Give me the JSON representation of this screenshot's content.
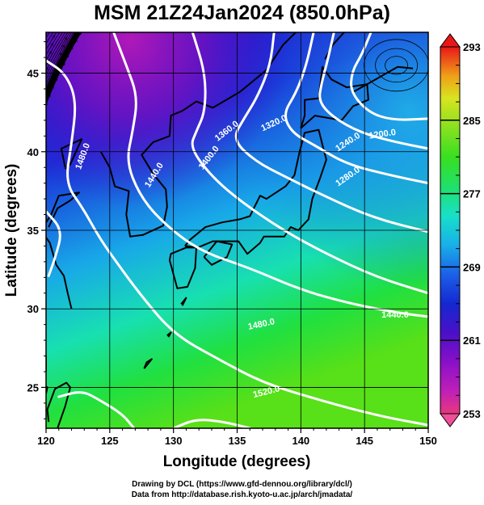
{
  "title": "MSM 21Z24Jan2024 (850.0hPa)",
  "footer": {
    "line1": "Drawing by DCL (https://www.gfd-dennou.org/library/dcl/)",
    "line2": "Data from http://database.rish.kyoto-u.ac.jp/arch/jmadata/"
  },
  "map": {
    "xlabel": "Longitude (degrees)",
    "ylabel": "Latitude (degrees)",
    "xlim": [
      120,
      150
    ],
    "ylim": [
      22.4,
      47.6
    ],
    "xticks": [
      "120",
      "125",
      "130",
      "135",
      "140",
      "145",
      "150"
    ],
    "yticks": [
      "25",
      "30",
      "35",
      "40",
      "45"
    ],
    "contour_labels": [
      {
        "text": "1480.0",
        "lon": 122.9,
        "lat": 39.7,
        "angle": -70
      },
      {
        "text": "1440.0",
        "lon": 128.5,
        "lat": 38.5,
        "angle": -58
      },
      {
        "text": "1400.0",
        "lon": 132.8,
        "lat": 39.6,
        "angle": -52
      },
      {
        "text": "1360.0",
        "lon": 134.2,
        "lat": 41.3,
        "angle": -38
      },
      {
        "text": "1320.0",
        "lon": 137.9,
        "lat": 41.8,
        "angle": -25
      },
      {
        "text": "1240.0",
        "lon": 143.7,
        "lat": 40.6,
        "angle": -33
      },
      {
        "text": "1280.0",
        "lon": 143.7,
        "lat": 38.4,
        "angle": -35
      },
      {
        "text": "1200.0",
        "lon": 146.4,
        "lat": 41.1,
        "angle": -8
      },
      {
        "text": "1440.0",
        "lon": 147.4,
        "lat": 29.6,
        "angle": 0
      },
      {
        "text": "1480.0",
        "lon": 136.9,
        "lat": 29.0,
        "angle": -12
      },
      {
        "text": "1520.0",
        "lon": 137.3,
        "lat": 24.7,
        "angle": -14
      }
    ],
    "colorbar": {
      "labels": [
        "293",
        "285",
        "277",
        "269",
        "261",
        "253"
      ],
      "range": [
        253,
        293
      ],
      "colors": [
        "#e8387c",
        "#c020b8",
        "#8a10c8",
        "#4a10c8",
        "#1428d0",
        "#1c60e8",
        "#18b0e8",
        "#18e0c8",
        "#20e068",
        "#38e020",
        "#88e020",
        "#c8e820",
        "#e8e020",
        "#f09018",
        "#f04818",
        "#e81818"
      ]
    }
  }
}
